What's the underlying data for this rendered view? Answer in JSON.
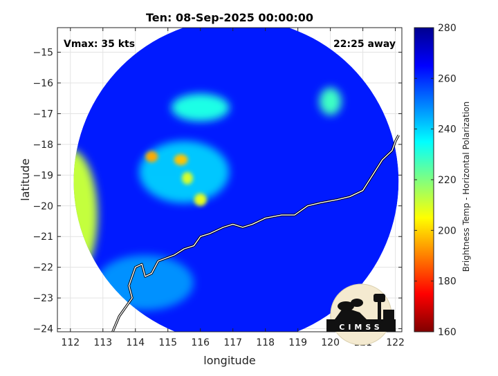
{
  "chart_data": {
    "type": "heatmap",
    "title": "Ten: 08-Sep-2025 00:00:00",
    "annotations": {
      "left": "Vmax: 35 kts",
      "right": "22:25 away"
    },
    "xlabel": "longitude",
    "ylabel": "latitude",
    "xlim": [
      111.6,
      122.2
    ],
    "ylim": [
      -24.1,
      -14.2
    ],
    "x_ticks": [
      112,
      113,
      114,
      115,
      116,
      117,
      118,
      119,
      120,
      121,
      122
    ],
    "y_ticks": [
      -15,
      -16,
      -17,
      -18,
      -19,
      -20,
      -21,
      -22,
      -23,
      -24
    ],
    "grid": true,
    "colorbar": {
      "label": "Brightness Temp - Horizontal Polarization",
      "range": [
        160,
        280
      ],
      "ticks": [
        280,
        260,
        240,
        220,
        200,
        180,
        160
      ],
      "colormap": [
        "#800000",
        "#ff0000",
        "#ff8000",
        "#ffff00",
        "#80ff80",
        "#00ffff",
        "#0080ff",
        "#0000ff",
        "#00008f"
      ]
    },
    "swath": {
      "center": [
        117.1,
        -19.2
      ],
      "radius_deg": 5.0,
      "background_value": 262
    },
    "features": [
      {
        "name": "western edge warm band",
        "lon": 112.2,
        "lat": -20.3,
        "value": 212
      },
      {
        "name": "cold core 1",
        "lon": 114.5,
        "lat": -18.4,
        "value": 195
      },
      {
        "name": "cold core 2",
        "lon": 115.4,
        "lat": -18.5,
        "value": 198
      },
      {
        "name": "cold core 3",
        "lon": 115.6,
        "lat": -19.1,
        "value": 210
      },
      {
        "name": "cold core 4",
        "lon": 116.0,
        "lat": -19.8,
        "value": 208
      },
      {
        "name": "north cloud band",
        "lon": 116.0,
        "lat": -16.8,
        "value": 232
      },
      {
        "name": "northeast cell",
        "lon": 120.0,
        "lat": -16.6,
        "value": 228
      },
      {
        "name": "southwest shallow water",
        "lon": 114.3,
        "lat": -22.5,
        "value": 248
      }
    ],
    "coastline": [
      [
        113.3,
        -24.1
      ],
      [
        113.5,
        -23.6
      ],
      [
        113.9,
        -23.0
      ],
      [
        113.8,
        -22.6
      ],
      [
        114.0,
        -22.0
      ],
      [
        114.2,
        -21.9
      ],
      [
        114.3,
        -22.3
      ],
      [
        114.5,
        -22.2
      ],
      [
        114.7,
        -21.8
      ],
      [
        115.2,
        -21.6
      ],
      [
        115.5,
        -21.4
      ],
      [
        115.8,
        -21.3
      ],
      [
        116.0,
        -21.0
      ],
      [
        116.3,
        -20.9
      ],
      [
        116.7,
        -20.7
      ],
      [
        117.0,
        -20.6
      ],
      [
        117.3,
        -20.7
      ],
      [
        117.6,
        -20.6
      ],
      [
        118.0,
        -20.4
      ],
      [
        118.5,
        -20.3
      ],
      [
        118.9,
        -20.3
      ],
      [
        119.3,
        -20.0
      ],
      [
        119.7,
        -19.9
      ],
      [
        120.2,
        -19.8
      ],
      [
        120.6,
        -19.7
      ],
      [
        121.0,
        -19.5
      ],
      [
        121.3,
        -19.0
      ],
      [
        121.6,
        -18.5
      ],
      [
        121.9,
        -18.2
      ],
      [
        122.0,
        -17.9
      ],
      [
        122.1,
        -17.7
      ]
    ],
    "logo_text": "CIMSS"
  }
}
